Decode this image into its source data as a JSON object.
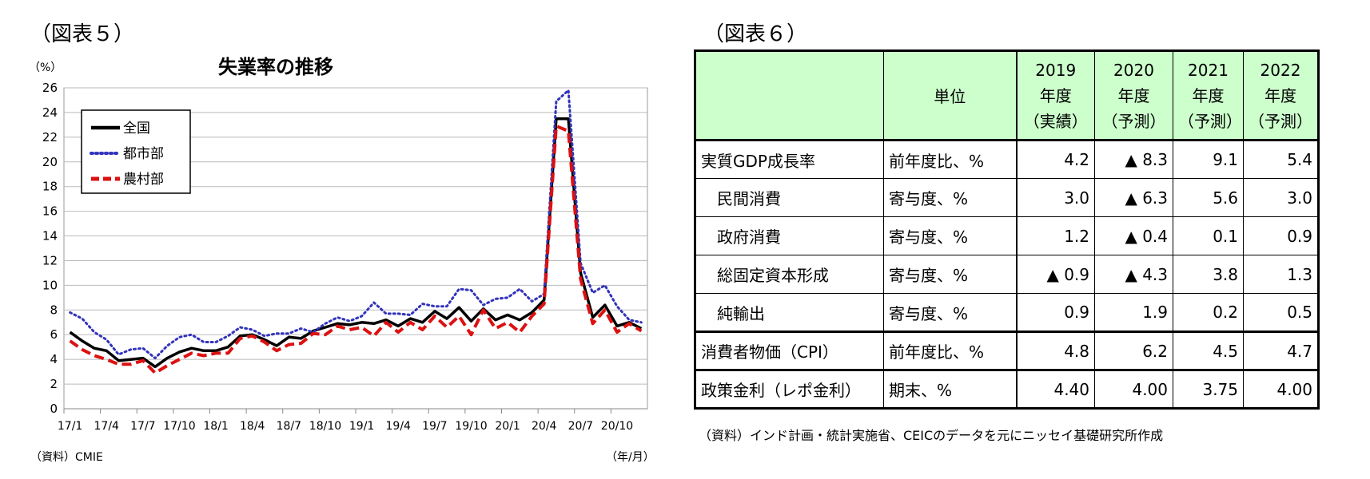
{
  "fig5": {
    "label": "（図表５）",
    "unit": "（%）",
    "x_unit": "（年/月）",
    "source": "（資料）CMIE"
  },
  "fig6": {
    "label": "（図表６）",
    "source": "（資料）インド計画・統計実施省、CEICのデータを元にニッセイ基礎研究所作成",
    "header": {
      "unit_label": "単位",
      "years": [
        {
          "year": "2019",
          "suffix": "年度",
          "status": "（実績）"
        },
        {
          "year": "2020",
          "suffix": "年度",
          "status": "（予測）"
        },
        {
          "year": "2021",
          "suffix": "年度",
          "status": "（予測）"
        },
        {
          "year": "2022",
          "suffix": "年度",
          "status": "（予測）"
        }
      ]
    },
    "rows": [
      {
        "label": "実質GDP成長率",
        "unit": "前年度比、%",
        "values": [
          "4.2",
          "▲ 8.3",
          "9.1",
          "5.4"
        ]
      },
      {
        "label": "民間消費",
        "unit": "寄与度、%",
        "values": [
          "3.0",
          "▲ 6.3",
          "5.6",
          "3.0"
        ]
      },
      {
        "label": "政府消費",
        "unit": "寄与度、%",
        "values": [
          "1.2",
          "▲ 0.4",
          "0.1",
          "0.9"
        ]
      },
      {
        "label": "総固定資本形成",
        "unit": "寄与度、%",
        "values": [
          "▲ 0.9",
          "▲ 4.3",
          "3.8",
          "1.3"
        ]
      },
      {
        "label": "純輸出",
        "unit": "寄与度、%",
        "values": [
          "0.9",
          "1.9",
          "0.2",
          "0.5"
        ]
      },
      {
        "label": "消費者物価（CPI）",
        "unit": "前年度比、%",
        "values": [
          "4.8",
          "6.2",
          "4.5",
          "4.7"
        ]
      },
      {
        "label": "政策金利（レポ金利）",
        "unit": "期末、%",
        "values": [
          "4.40",
          "4.00",
          "3.75",
          "4.00"
        ]
      }
    ]
  },
  "chart_data": {
    "type": "line",
    "title": "失業率の推移",
    "ylim": [
      0,
      26
    ],
    "yticks": [
      0,
      2,
      4,
      6,
      8,
      10,
      12,
      14,
      16,
      18,
      20,
      22,
      24,
      26
    ],
    "xtick_labels": [
      "17/1",
      "17/4",
      "17/7",
      "17/10",
      "18/1",
      "18/4",
      "18/7",
      "18/10",
      "19/1",
      "19/4",
      "19/7",
      "19/10",
      "20/1",
      "20/4",
      "20/7",
      "20/10"
    ],
    "legend_position": "top-left",
    "x": [
      "17/1",
      "17/2",
      "17/3",
      "17/4",
      "17/5",
      "17/6",
      "17/7",
      "17/8",
      "17/9",
      "17/10",
      "17/11",
      "17/12",
      "18/1",
      "18/2",
      "18/3",
      "18/4",
      "18/5",
      "18/6",
      "18/7",
      "18/8",
      "18/9",
      "18/10",
      "18/11",
      "18/12",
      "19/1",
      "19/2",
      "19/3",
      "19/4",
      "19/5",
      "19/6",
      "19/7",
      "19/8",
      "19/9",
      "19/10",
      "19/11",
      "19/12",
      "20/1",
      "20/2",
      "20/3",
      "20/4",
      "20/5",
      "20/6",
      "20/7",
      "20/8",
      "20/9",
      "20/10",
      "20/11",
      "20/12"
    ],
    "series": [
      {
        "name": "全国",
        "color": "#000000",
        "style": "solid",
        "values": [
          6.2,
          5.5,
          4.9,
          4.7,
          3.9,
          4.0,
          4.1,
          3.4,
          4.1,
          4.6,
          4.9,
          4.7,
          4.7,
          5.0,
          5.9,
          6.0,
          5.6,
          5.1,
          5.8,
          5.7,
          6.3,
          6.6,
          6.9,
          6.8,
          7.0,
          6.9,
          7.2,
          6.7,
          7.3,
          7.0,
          7.9,
          7.3,
          8.2,
          7.1,
          8.1,
          7.2,
          7.6,
          7.2,
          7.8,
          8.8,
          23.5,
          23.5,
          11.0,
          7.4,
          8.4,
          6.7,
          7.0,
          6.5
        ]
      },
      {
        "name": "都市部",
        "color": "#3333bb",
        "style": "dotted",
        "values": [
          7.8,
          7.3,
          6.2,
          5.6,
          4.4,
          4.8,
          4.9,
          4.1,
          5.1,
          5.8,
          6.0,
          5.4,
          5.4,
          5.9,
          6.6,
          6.4,
          5.9,
          6.1,
          6.1,
          6.5,
          6.2,
          6.9,
          7.4,
          7.1,
          7.5,
          8.6,
          7.7,
          7.7,
          7.6,
          8.5,
          8.3,
          8.3,
          9.7,
          9.6,
          8.4,
          8.9,
          9.0,
          9.7,
          8.7,
          9.3,
          24.9,
          25.8,
          11.8,
          9.4,
          10.0,
          8.3,
          7.2,
          7.0
        ]
      },
      {
        "name": "農村部",
        "color": "#dd1111",
        "style": "dashed",
        "values": [
          5.5,
          4.8,
          4.3,
          4.0,
          3.6,
          3.6,
          3.9,
          2.9,
          3.5,
          4.0,
          4.5,
          4.3,
          4.5,
          4.5,
          5.7,
          5.9,
          5.4,
          4.7,
          5.2,
          5.3,
          6.1,
          6.0,
          6.7,
          6.4,
          6.6,
          5.9,
          7.0,
          6.2,
          7.0,
          6.4,
          7.5,
          6.6,
          7.5,
          6.0,
          8.0,
          6.5,
          7.0,
          6.2,
          7.5,
          8.5,
          22.9,
          22.5,
          10.5,
          6.9,
          8.0,
          6.2,
          6.9,
          6.3
        ]
      }
    ]
  }
}
